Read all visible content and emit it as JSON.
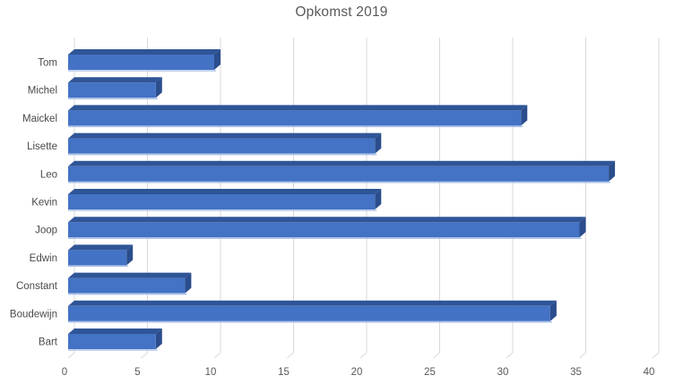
{
  "chart_data": {
    "type": "bar",
    "orientation": "horizontal",
    "style": "3d-bar",
    "title": "Opkomst 2019",
    "categories": [
      "Tom",
      "Michel",
      "Maickel",
      "Lisette",
      "Leo",
      "Kevin",
      "Joop",
      "Edwin",
      "Constant",
      "Boudewijn",
      "Bart"
    ],
    "values": [
      10,
      6,
      31,
      21,
      37,
      21,
      35,
      4,
      8,
      33,
      6
    ],
    "row_order": "top-to-bottom",
    "xlabel": "",
    "ylabel": "",
    "xlim": [
      0,
      40
    ],
    "x_ticks": [
      0,
      5,
      10,
      15,
      20,
      25,
      30,
      35,
      40
    ],
    "grid": true,
    "legend": false,
    "colors": {
      "bar_front": "#4472C4",
      "bar_top": "#2F5597",
      "bar_side": "#2B4D8C",
      "bar_bottom_highlight": "#ADC2E8",
      "gridline": "#D9D9D9",
      "title_text": "#595959",
      "axis_text": "#595959",
      "category_text": "#4A4A4A",
      "background": "#FFFFFF"
    }
  }
}
